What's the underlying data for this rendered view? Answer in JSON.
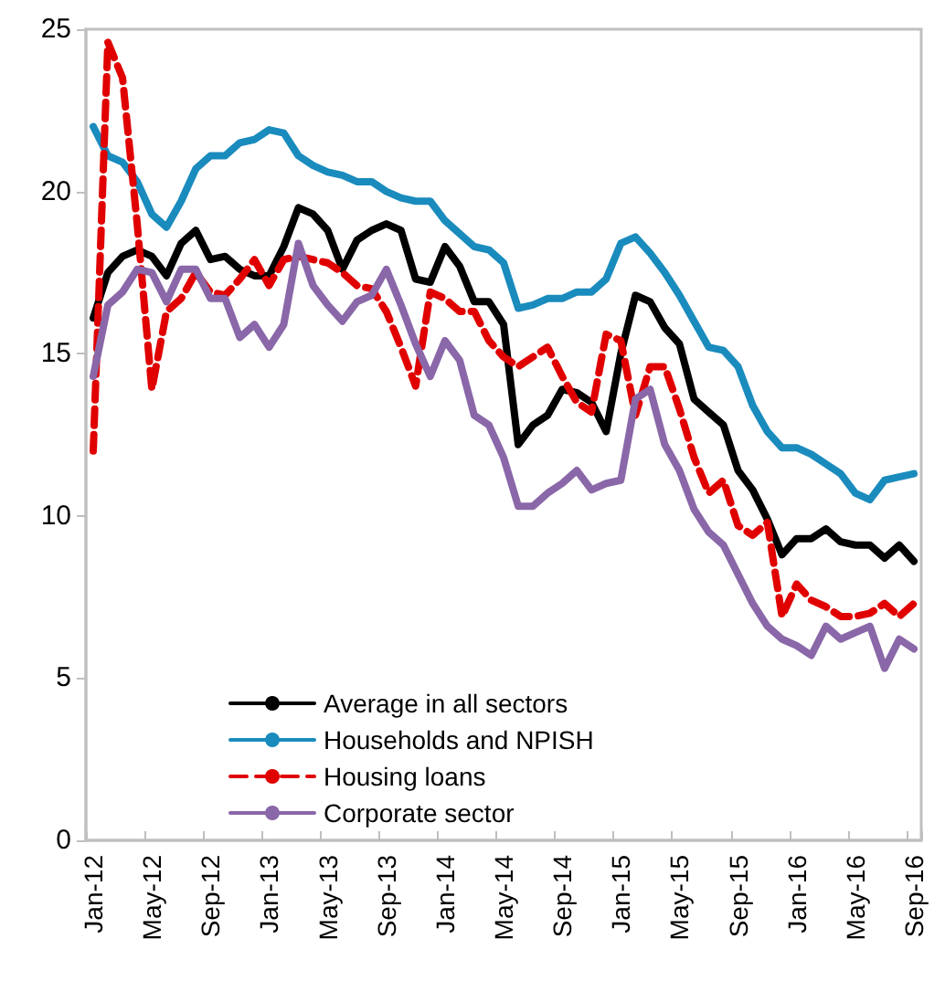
{
  "chart_data": {
    "type": "line",
    "categories": [
      "Jan-12",
      null,
      null,
      null,
      "May-12",
      null,
      null,
      null,
      "Sep-12",
      null,
      null,
      null,
      "Jan-13",
      null,
      null,
      null,
      "May-13",
      null,
      null,
      null,
      "Sep-13",
      null,
      null,
      null,
      "Jan-14",
      null,
      null,
      null,
      "May-14",
      null,
      null,
      null,
      "Sep-14",
      null,
      null,
      null,
      "Jan-15",
      null,
      null,
      null,
      "May-15",
      null,
      null,
      null,
      "Sep-15",
      null,
      null,
      null,
      "Jan-16",
      null,
      null,
      null,
      "May-16",
      null,
      null,
      null,
      "Sep-16"
    ],
    "series": [
      {
        "name": "Average in all sectors",
        "color": "#000000",
        "values": [
          16.1,
          17.5,
          18.0,
          18.2,
          18.0,
          17.4,
          18.4,
          18.8,
          17.9,
          18.0,
          17.6,
          17.4,
          17.4,
          18.3,
          19.5,
          19.3,
          18.8,
          17.6,
          18.5,
          18.8,
          19.0,
          18.8,
          17.3,
          17.2,
          18.3,
          17.7,
          16.6,
          16.6,
          15.9,
          12.2,
          12.8,
          13.1,
          13.9,
          13.8,
          13.5,
          12.6,
          15.0,
          16.8,
          16.6,
          15.8,
          15.3,
          13.6,
          13.2,
          12.8,
          11.4,
          10.8,
          9.9,
          8.8,
          9.3,
          9.3,
          9.6,
          9.2,
          9.1,
          9.1,
          8.7,
          9.1,
          8.6
        ]
      },
      {
        "name": "Households and NPISH",
        "color": "#1a8bbd",
        "values": [
          22.0,
          21.1,
          20.9,
          20.3,
          19.3,
          18.9,
          19.7,
          20.7,
          21.1,
          21.1,
          21.5,
          21.6,
          21.9,
          21.8,
          21.1,
          20.8,
          20.6,
          20.5,
          20.3,
          20.3,
          20.0,
          19.8,
          19.7,
          19.7,
          19.1,
          18.7,
          18.3,
          18.2,
          17.8,
          16.4,
          16.5,
          16.7,
          16.7,
          16.9,
          16.9,
          17.3,
          18.4,
          18.6,
          18.1,
          17.5,
          16.8,
          16.0,
          15.2,
          15.1,
          14.6,
          13.4,
          12.6,
          12.1,
          12.1,
          11.9,
          11.6,
          11.3,
          10.7,
          10.5,
          11.1,
          11.2,
          11.3
        ]
      },
      {
        "name": "Housing loans",
        "color": "#e00000",
        "line_style": "dashed",
        "values": [
          12.0,
          24.6,
          23.5,
          19.0,
          13.9,
          16.3,
          16.7,
          17.5,
          16.9,
          16.8,
          17.3,
          17.9,
          17.1,
          17.9,
          18.0,
          17.9,
          17.8,
          17.5,
          17.1,
          17.0,
          16.3,
          15.2,
          14.0,
          16.9,
          16.7,
          16.3,
          16.3,
          15.4,
          14.9,
          14.6,
          14.9,
          15.2,
          14.3,
          13.5,
          13.2,
          15.6,
          15.4,
          13.1,
          14.6,
          14.6,
          13.3,
          11.8,
          10.7,
          11.1,
          9.7,
          9.4,
          9.8,
          6.9,
          7.9,
          7.4,
          7.2,
          6.9,
          6.9,
          7.0,
          7.3,
          6.9,
          7.3
        ]
      },
      {
        "name": "Corporate sector",
        "color": "#8a67a8",
        "values": [
          14.3,
          16.5,
          16.9,
          17.6,
          17.5,
          16.6,
          17.6,
          17.6,
          16.7,
          16.7,
          15.5,
          15.9,
          15.2,
          15.9,
          18.4,
          17.1,
          16.5,
          16.0,
          16.6,
          16.8,
          17.6,
          16.5,
          15.3,
          14.3,
          15.4,
          14.8,
          13.1,
          12.8,
          11.8,
          10.3,
          10.3,
          10.7,
          11.0,
          11.4,
          10.8,
          11.0,
          11.1,
          13.6,
          13.9,
          12.2,
          11.4,
          10.2,
          9.5,
          9.1,
          8.2,
          7.3,
          6.6,
          6.2,
          6.0,
          5.7,
          6.6,
          6.2,
          6.4,
          6.6,
          5.3,
          6.2,
          5.9
        ]
      }
    ],
    "ylim": [
      0,
      25
    ],
    "yticks": [
      0,
      5,
      10,
      15,
      20,
      25
    ],
    "grid": false,
    "legend": "bottom",
    "marker": "none",
    "line_style": "solid"
  }
}
